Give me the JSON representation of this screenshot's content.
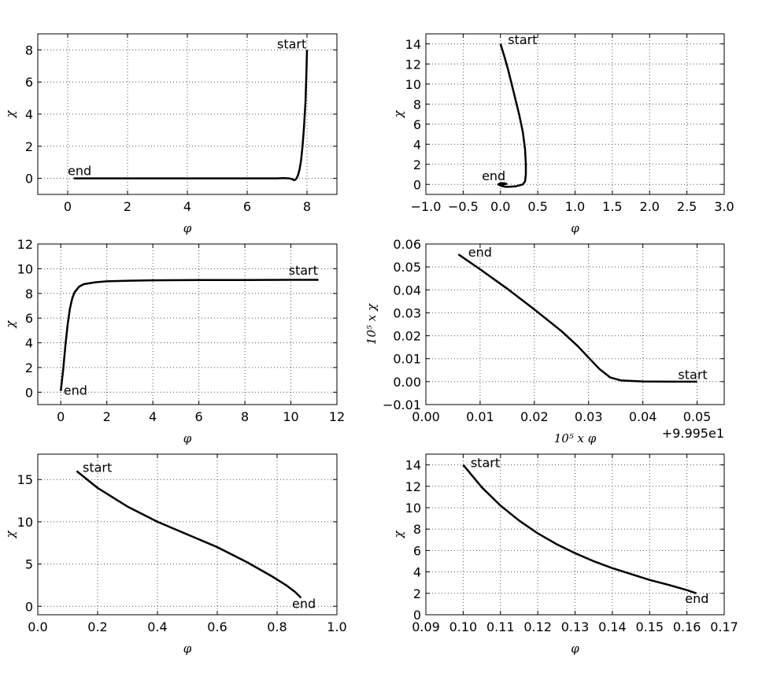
{
  "figure": {
    "background": "#ffffff",
    "line_color": "#000000",
    "grid_color": "#555555"
  },
  "chart_data": [
    {
      "type": "line",
      "title": "",
      "xlabel": "φ",
      "ylabel": "χ",
      "xlim": [
        -1,
        9
      ],
      "ylim": [
        -1,
        9
      ],
      "xticks": [
        0,
        2,
        4,
        6,
        8
      ],
      "yticks": [
        0,
        2,
        4,
        6,
        8
      ],
      "xtick_labels": [
        "0",
        "2",
        "4",
        "6",
        "8"
      ],
      "ytick_labels": [
        "0",
        "2",
        "4",
        "6",
        "8"
      ],
      "grid": true,
      "series": [
        {
          "x": [
            8.0,
            7.98,
            7.95,
            7.9,
            7.85,
            7.8,
            7.75,
            7.7,
            7.65,
            7.6,
            7.55,
            7.5,
            7.4,
            7.2,
            7.0,
            6.5,
            5.0,
            3.0,
            1.0,
            0.2
          ],
          "y": [
            8.0,
            6.5,
            4.8,
            3.2,
            2.0,
            1.1,
            0.55,
            0.2,
            0.0,
            -0.1,
            -0.1,
            -0.05,
            0.0,
            0.02,
            0.0,
            0.0,
            0.0,
            0.0,
            0.0,
            0.0
          ]
        }
      ],
      "annotations": [
        {
          "text": "start",
          "x": 7.0,
          "y": 8.1
        },
        {
          "text": "end",
          "x": 0.0,
          "y": 0.2
        }
      ]
    },
    {
      "type": "line",
      "title": "",
      "xlabel": "φ",
      "ylabel": "χ",
      "xlim": [
        -1,
        3
      ],
      "ylim": [
        -1,
        15
      ],
      "xticks": [
        -1.0,
        -0.5,
        0.0,
        0.5,
        1.0,
        1.5,
        2.0,
        2.5,
        3.0
      ],
      "yticks": [
        0,
        2,
        4,
        6,
        8,
        10,
        12,
        14
      ],
      "xtick_labels": [
        "−1.0",
        "−0.5",
        "0.0",
        "0.5",
        "1.0",
        "1.5",
        "2.0",
        "2.5",
        "3.0"
      ],
      "ytick_labels": [
        "0",
        "2",
        "4",
        "6",
        "8",
        "10",
        "12",
        "14"
      ],
      "grid": true,
      "series": [
        {
          "x": [
            0.0,
            0.05,
            0.1,
            0.15,
            0.2,
            0.25,
            0.3,
            0.33,
            0.34,
            0.34,
            0.33,
            0.3,
            0.2,
            0.1,
            0.05,
            0.0,
            -0.03,
            0.0,
            0.05,
            0.08,
            0.04,
            0.0
          ],
          "y": [
            14.0,
            12.8,
            11.5,
            10.0,
            8.5,
            7.0,
            5.2,
            3.5,
            2.0,
            1.0,
            0.3,
            0.0,
            -0.2,
            -0.25,
            -0.22,
            -0.12,
            0.0,
            0.12,
            0.12,
            0.05,
            0.0,
            0.0
          ]
        }
      ],
      "annotations": [
        {
          "text": "start",
          "x": 0.1,
          "y": 14.0
        },
        {
          "text": "end",
          "x": -0.25,
          "y": 0.4
        }
      ]
    },
    {
      "type": "line",
      "title": "",
      "xlabel": "φ",
      "ylabel": "χ",
      "xlim": [
        -1,
        12
      ],
      "ylim": [
        -1,
        12
      ],
      "xticks": [
        0,
        2,
        4,
        6,
        8,
        10,
        12
      ],
      "yticks": [
        0,
        2,
        4,
        6,
        8,
        10,
        12
      ],
      "xtick_labels": [
        "0",
        "2",
        "4",
        "6",
        "8",
        "10",
        "12"
      ],
      "ytick_labels": [
        "0",
        "2",
        "4",
        "6",
        "8",
        "10",
        "12"
      ],
      "grid": true,
      "series": [
        {
          "x": [
            0.0,
            0.1,
            0.2,
            0.3,
            0.4,
            0.5,
            0.6,
            0.8,
            1.0,
            1.5,
            2.0,
            3.0,
            4.0,
            6.0,
            8.0,
            10.0,
            11.2
          ],
          "y": [
            0.1,
            1.8,
            3.8,
            5.5,
            6.8,
            7.6,
            8.1,
            8.55,
            8.75,
            8.9,
            8.98,
            9.03,
            9.06,
            9.08,
            9.09,
            9.1,
            9.1
          ]
        }
      ],
      "annotations": [
        {
          "text": "start",
          "x": 9.9,
          "y": 9.5
        },
        {
          "text": "end",
          "x": 0.12,
          "y": -0.2
        }
      ]
    },
    {
      "type": "line",
      "title": "",
      "xlabel": "10⁵ x φ",
      "ylabel": "10⁵ x χ",
      "xlim": [
        0.0,
        0.055
      ],
      "ylim": [
        -0.01,
        0.06
      ],
      "xticks": [
        0.0,
        0.01,
        0.02,
        0.03,
        0.04,
        0.05
      ],
      "yticks": [
        -0.01,
        0.0,
        0.01,
        0.02,
        0.03,
        0.04,
        0.05,
        0.06
      ],
      "xtick_labels": [
        "0.00",
        "0.01",
        "0.02",
        "0.03",
        "0.04",
        "0.05"
      ],
      "ytick_labels": [
        "−0.01",
        "0.00",
        "0.01",
        "0.02",
        "0.03",
        "0.04",
        "0.05",
        "0.06"
      ],
      "x_offset_label": "+9.995e1",
      "grid": true,
      "series": [
        {
          "x": [
            0.006,
            0.01,
            0.015,
            0.02,
            0.025,
            0.028,
            0.03,
            0.032,
            0.034,
            0.036,
            0.04,
            0.045,
            0.05
          ],
          "y": [
            0.0555,
            0.049,
            0.0405,
            0.0315,
            0.022,
            0.0155,
            0.0105,
            0.0055,
            0.0018,
            0.0005,
            0.0001,
            0.0,
            0.0
          ]
        }
      ],
      "annotations": [
        {
          "text": "start",
          "x": 0.0465,
          "y": 0.0012
        },
        {
          "text": "end",
          "x": 0.0078,
          "y": 0.0545
        }
      ]
    },
    {
      "type": "line",
      "title": "",
      "xlabel": "φ",
      "ylabel": "χ",
      "xlim": [
        0.0,
        1.0
      ],
      "ylim": [
        -1,
        18
      ],
      "xticks": [
        0.0,
        0.2,
        0.4,
        0.6,
        0.8,
        1.0
      ],
      "yticks": [
        0,
        5,
        10,
        15
      ],
      "xtick_labels": [
        "0.0",
        "0.2",
        "0.4",
        "0.6",
        "0.8",
        "1.0"
      ],
      "ytick_labels": [
        "0",
        "5",
        "10",
        "15"
      ],
      "grid": true,
      "series": [
        {
          "x": [
            0.13,
            0.2,
            0.3,
            0.4,
            0.5,
            0.6,
            0.7,
            0.78,
            0.83,
            0.86,
            0.88
          ],
          "y": [
            16.0,
            14.0,
            11.8,
            10.0,
            8.5,
            7.0,
            5.2,
            3.6,
            2.5,
            1.7,
            1.0
          ]
        }
      ],
      "annotations": [
        {
          "text": "start",
          "x": 0.15,
          "y": 15.9
        },
        {
          "text": "end",
          "x": 0.85,
          "y": -0.2
        }
      ]
    },
    {
      "type": "line",
      "title": "",
      "xlabel": "φ",
      "ylabel": "χ",
      "xlim": [
        0.09,
        0.17
      ],
      "ylim": [
        0,
        15
      ],
      "xticks": [
        0.09,
        0.1,
        0.11,
        0.12,
        0.13,
        0.14,
        0.15,
        0.16,
        0.17
      ],
      "yticks": [
        0,
        2,
        4,
        6,
        8,
        10,
        12,
        14
      ],
      "xtick_labels": [
        "0.09",
        "0.10",
        "0.11",
        "0.12",
        "0.13",
        "0.14",
        "0.15",
        "0.16",
        "0.17"
      ],
      "ytick_labels": [
        "0",
        "2",
        "4",
        "6",
        "8",
        "10",
        "12",
        "14"
      ],
      "grid": true,
      "series": [
        {
          "x": [
            0.1,
            0.105,
            0.11,
            0.115,
            0.12,
            0.125,
            0.13,
            0.135,
            0.14,
            0.145,
            0.15,
            0.155,
            0.16,
            0.1625
          ],
          "y": [
            14.0,
            11.9,
            10.2,
            8.8,
            7.6,
            6.6,
            5.75,
            5.0,
            4.35,
            3.8,
            3.25,
            2.8,
            2.3,
            2.0
          ]
        }
      ],
      "annotations": [
        {
          "text": "start",
          "x": 0.102,
          "y": 13.8
        },
        {
          "text": "end",
          "x": 0.1595,
          "y": 1.1
        }
      ]
    }
  ]
}
